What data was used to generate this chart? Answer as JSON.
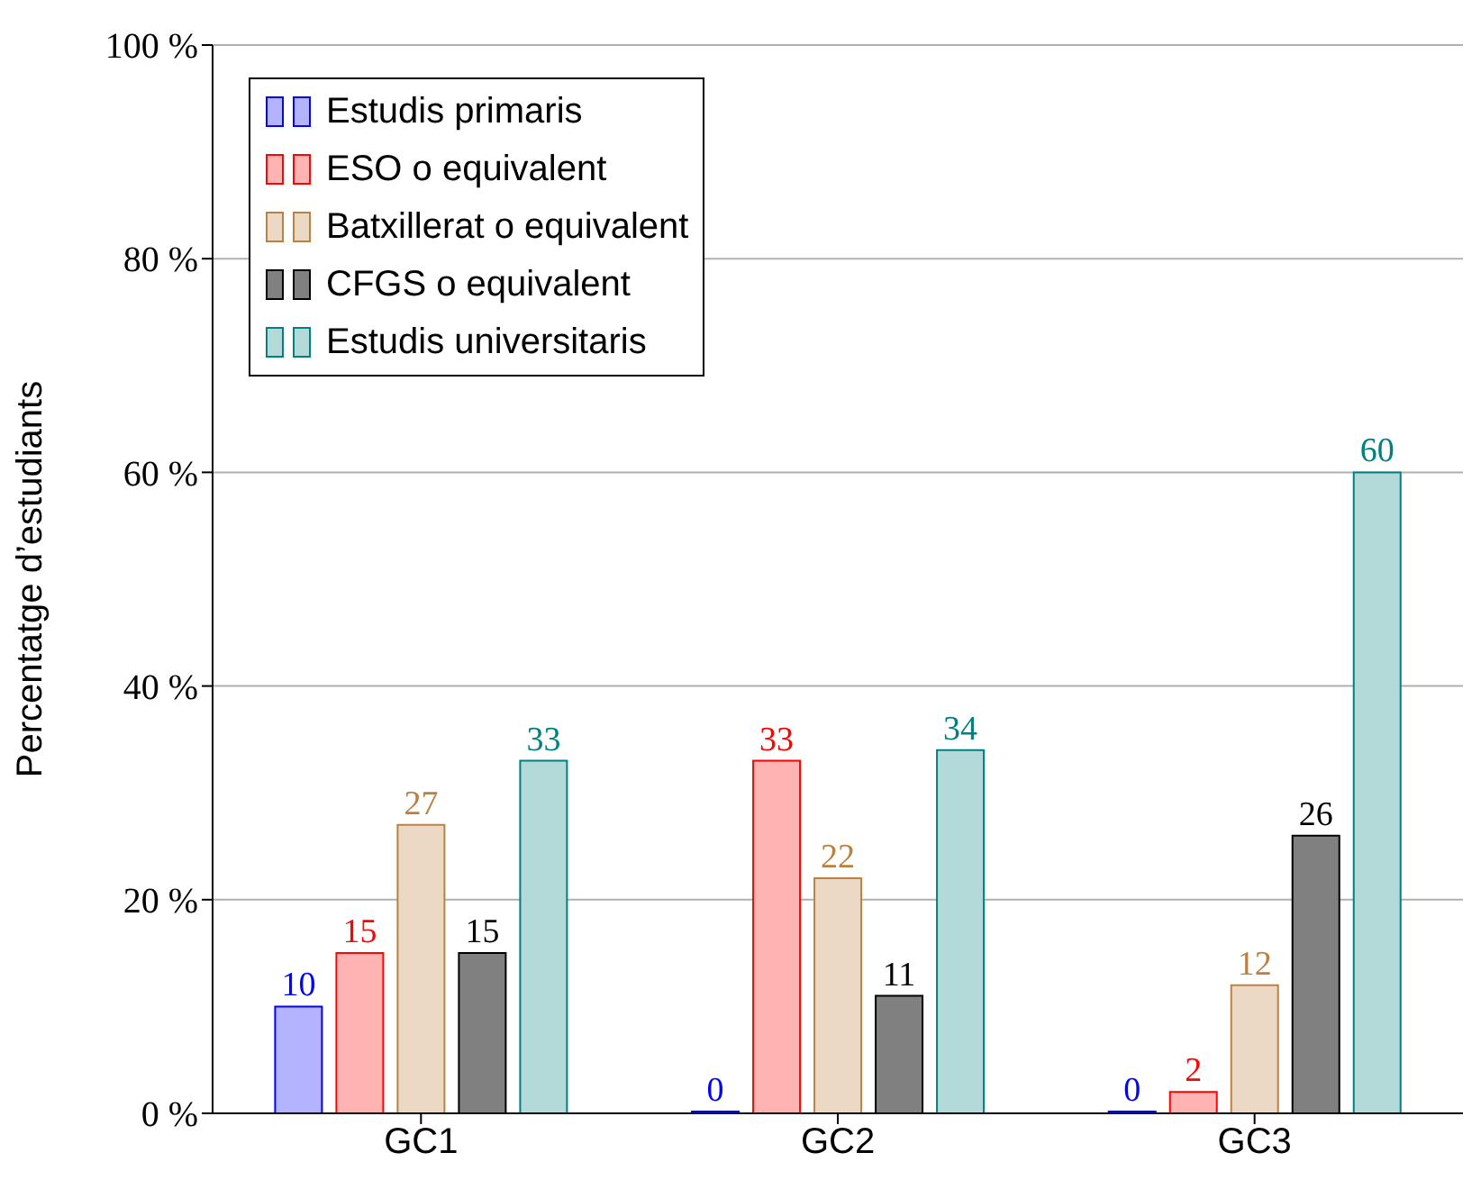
{
  "chart_data": {
    "type": "bar",
    "ylabel": "Percentatge d’estudiants",
    "categories": [
      "GC1",
      "GC2",
      "GC3"
    ],
    "series": [
      {
        "name": "Estudis primaris",
        "color": "#b3b3ff",
        "values": [
          10,
          0,
          0
        ]
      },
      {
        "name": "ESO o equivalent",
        "color": "#ffb3b3",
        "values": [
          15,
          33,
          2
        ]
      },
      {
        "name": "Batxillerat o equivalent",
        "color": "#ebd9c6",
        "values": [
          27,
          22,
          12
        ]
      },
      {
        "name": "CFGS o equivalent",
        "color": "#808080",
        "values": [
          15,
          11,
          26
        ]
      },
      {
        "name": "Estudis universitaris",
        "color": "#b3d9d9",
        "values": [
          33,
          34,
          60
        ]
      }
    ],
    "ylim": [
      0,
      100
    ],
    "yticks": [
      {
        "value": 0,
        "label": "0 %"
      },
      {
        "value": 20,
        "label": "20 %"
      },
      {
        "value": 40,
        "label": "40 %"
      },
      {
        "value": 60,
        "label": "60 %"
      },
      {
        "value": 80,
        "label": "80 %"
      },
      {
        "value": 100,
        "label": "100 %"
      }
    ],
    "grid": "y",
    "legend": "top left",
    "data_labels": true
  }
}
